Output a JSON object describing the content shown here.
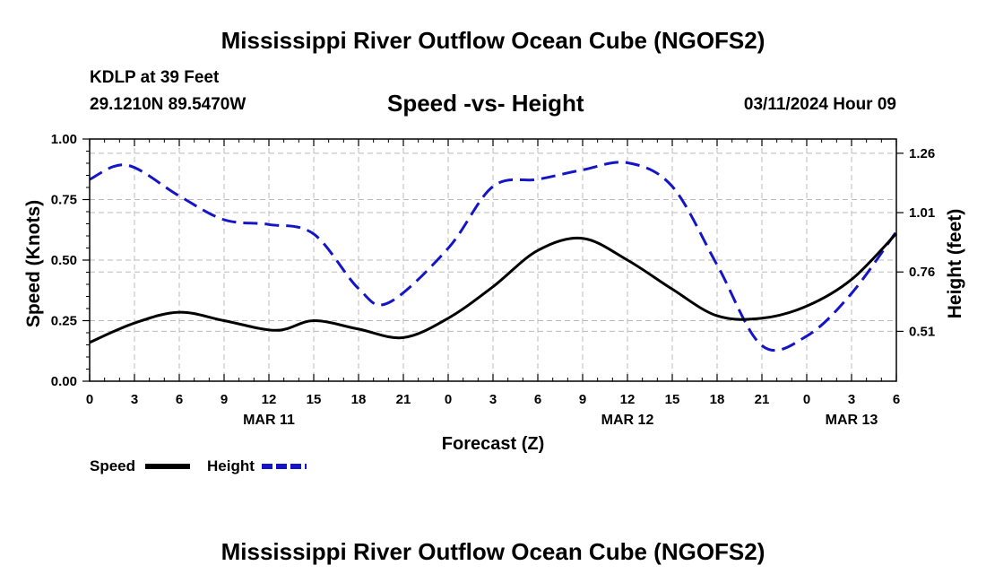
{
  "header": {
    "title": "Mississippi River Outflow Ocean Cube (NGOFS2)",
    "station": "KDLP at 39 Feet",
    "coords": "29.1210N  89.5470W",
    "chart_title": "Speed -vs- Height",
    "datetime": "03/11/2024 Hour 09"
  },
  "footer": {
    "title": "Mississippi River Outflow Ocean Cube (NGOFS2)"
  },
  "colors": {
    "speed": "#000000",
    "height": "#1515c8",
    "grid": "#bbbbbb"
  },
  "chart_data": {
    "type": "line",
    "title": "Speed -vs- Height",
    "xlabel": "Forecast (Z)",
    "ylabel": "Speed (Knots)",
    "y2label": "Height (feet)",
    "x_range": [
      0,
      54
    ],
    "ylim": [
      0,
      1
    ],
    "y2lim": [
      0.3,
      1.32
    ],
    "grid": true,
    "x_ticks": [
      0,
      3,
      6,
      9,
      12,
      15,
      18,
      21,
      24,
      27,
      30,
      33,
      36,
      39,
      42,
      45,
      48,
      51,
      54
    ],
    "x_tick_labels": [
      "0",
      "3",
      "6",
      "9",
      "12",
      "15",
      "18",
      "21",
      "0",
      "3",
      "6",
      "9",
      "12",
      "15",
      "18",
      "21",
      "0",
      "3",
      "6"
    ],
    "date_labels": [
      {
        "x": 12,
        "label": "MAR 11"
      },
      {
        "x": 36,
        "label": "MAR 12"
      },
      {
        "x": 51,
        "label": "MAR 13"
      }
    ],
    "y_ticks": [
      0.0,
      0.25,
      0.5,
      0.75,
      1.0
    ],
    "y_tick_labels": [
      "0.00",
      "0.25",
      "0.50",
      "0.75",
      "1.00"
    ],
    "y2_ticks": [
      0.51,
      0.76,
      1.01,
      1.26
    ],
    "y2_tick_labels": [
      "0.51",
      "0.76",
      "1.01",
      "1.26"
    ],
    "legend": [
      {
        "name": "Speed",
        "style": "solid"
      },
      {
        "name": "Height",
        "style": "dashed"
      }
    ],
    "series": [
      {
        "name": "Speed",
        "axis": "left",
        "x": [
          0,
          3,
          6,
          9,
          12.5,
          15,
          18,
          21,
          24,
          27,
          30,
          33,
          36,
          39,
          42,
          45,
          48,
          51,
          54
        ],
        "values": [
          0.16,
          0.24,
          0.285,
          0.25,
          0.21,
          0.25,
          0.215,
          0.18,
          0.26,
          0.39,
          0.54,
          0.59,
          0.5,
          0.38,
          0.27,
          0.26,
          0.31,
          0.42,
          0.61
        ]
      },
      {
        "name": "Height",
        "axis": "right",
        "x": [
          0,
          2.5,
          6,
          9,
          12,
          15,
          18,
          20,
          24,
          27,
          30,
          33,
          36,
          39,
          42,
          45,
          48,
          51,
          54
        ],
        "values": [
          1.15,
          1.21,
          1.08,
          0.98,
          0.96,
          0.92,
          0.69,
          0.63,
          0.86,
          1.12,
          1.15,
          1.19,
          1.22,
          1.12,
          0.79,
          0.45,
          0.49,
          0.67,
          0.93
        ]
      }
    ]
  }
}
